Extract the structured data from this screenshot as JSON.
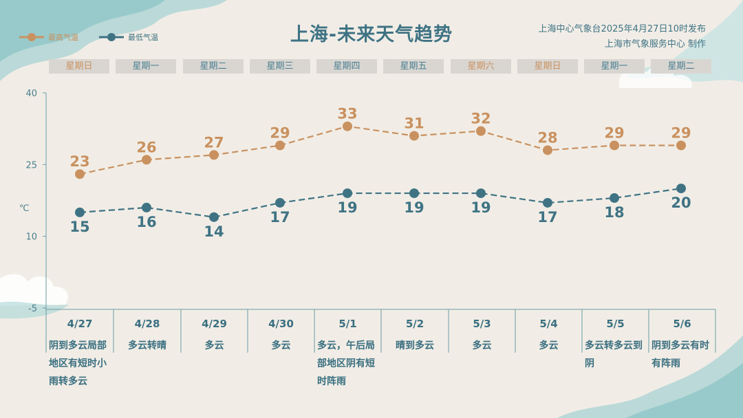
{
  "header": {
    "title": "上海-未来天气趋势",
    "source_line1": "上海中心气象台2025年4月27日10时发布",
    "source_line2": "上海市气象服务中心 制作"
  },
  "legend": {
    "high_label": "最高气温",
    "low_label": "最低气温"
  },
  "colors": {
    "high": "#c9915f",
    "low": "#3f7384",
    "axis": "#6c9aa6",
    "weekend_text": "#c9915f",
    "weekday_text": "#4a7f90"
  },
  "axis": {
    "unit_label": "℃",
    "ticks": [
      "40",
      "25",
      "10",
      "-5"
    ]
  },
  "days": [
    {
      "weekday": "星期日",
      "weekend": true,
      "date": "4/27",
      "weather": "阴到多云局部地区有短时小雨转多云"
    },
    {
      "weekday": "星期一",
      "weekend": false,
      "date": "4/28",
      "weather": "多云转晴"
    },
    {
      "weekday": "星期二",
      "weekend": false,
      "date": "4/29",
      "weather": "多云"
    },
    {
      "weekday": "星期三",
      "weekend": false,
      "date": "4/30",
      "weather": "多云"
    },
    {
      "weekday": "星期四",
      "weekend": false,
      "date": "5/1",
      "weather": "多云，午后局部地区阴有短时阵雨"
    },
    {
      "weekday": "星期五",
      "weekend": false,
      "date": "5/2",
      "weather": "晴到多云"
    },
    {
      "weekday": "星期六",
      "weekend": true,
      "date": "5/3",
      "weather": "多云"
    },
    {
      "weekday": "星期日",
      "weekend": true,
      "date": "5/4",
      "weather": "多云"
    },
    {
      "weekday": "星期一",
      "weekend": false,
      "date": "5/5",
      "weather": "多云转多云到阴"
    },
    {
      "weekday": "星期二",
      "weekend": false,
      "date": "5/6",
      "weather": "阴到多云有时有阵雨"
    }
  ],
  "chart_data": {
    "type": "line",
    "title": "上海-未来天气趋势",
    "categories": [
      "4/27",
      "4/28",
      "4/29",
      "4/30",
      "5/1",
      "5/2",
      "5/3",
      "5/4",
      "5/5",
      "5/6"
    ],
    "ylim": [
      -5,
      40
    ],
    "yticks": [
      40,
      25,
      10,
      -5
    ],
    "ylabel": "℃",
    "grid": false,
    "legend_position": "top-left",
    "series": [
      {
        "name": "最高气温",
        "values": [
          23,
          26,
          27,
          29,
          33,
          31,
          32,
          28,
          29,
          29
        ]
      },
      {
        "name": "最低气温",
        "values": [
          15,
          16,
          14,
          17,
          19,
          19,
          19,
          17,
          18,
          20
        ]
      }
    ]
  }
}
